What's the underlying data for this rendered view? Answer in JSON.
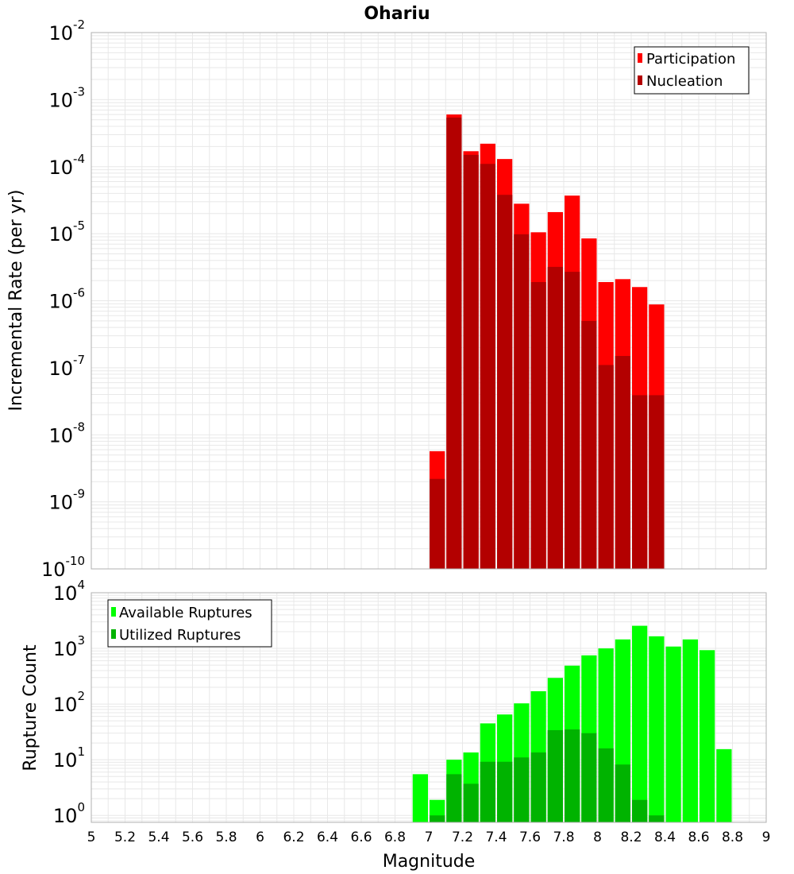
{
  "chart_title": "Ohariu",
  "x_axis_label": "Magnitude",
  "colors": {
    "participation": "#ff0000",
    "nucleation": "#b30000",
    "available": "#00ff00",
    "utilized": "#00b300",
    "grid": "#e8e8e8",
    "frame": "#b0b0b0"
  },
  "chart_data": [
    {
      "type": "bar",
      "ylabel": "Incremental Rate (per yr)",
      "yscale": "log",
      "ylim": [
        1e-10,
        0.01
      ],
      "xlim": [
        5,
        9
      ],
      "x_ticks": [
        "5",
        "5.2",
        "5.4",
        "5.6",
        "5.8",
        "6",
        "6.2",
        "6.4",
        "6.6",
        "6.8",
        "7",
        "7.2",
        "7.4",
        "7.6",
        "7.8",
        "8",
        "8.2",
        "8.4",
        "8.6",
        "8.8",
        "9"
      ],
      "y_tick_base": "10",
      "y_tick_exponents": [
        "-10",
        "-9",
        "-8",
        "-7",
        "-6",
        "-5",
        "-4",
        "-3",
        "-2"
      ],
      "legend_position": "top-right",
      "x": [
        7.05,
        7.15,
        7.25,
        7.35,
        7.45,
        7.55,
        7.65,
        7.75,
        7.85,
        7.95,
        8.05,
        8.15,
        8.25,
        8.35
      ],
      "series": [
        {
          "name": "Participation",
          "values": [
            5.7e-09,
            0.0006,
            0.00017,
            0.00022,
            0.00013,
            2.8e-05,
            1.05e-05,
            2.1e-05,
            3.7e-05,
            8.5e-06,
            1.9e-06,
            2.1e-06,
            1.6e-06,
            8.8e-07
          ]
        },
        {
          "name": "Nucleation",
          "values": [
            2.2e-09,
            0.00054,
            0.00015,
            0.00011,
            3.8e-05,
            9.8e-06,
            1.9e-06,
            3.2e-06,
            2.7e-06,
            5e-07,
            1.1e-07,
            1.5e-07,
            3.9e-08,
            3.9e-08
          ]
        }
      ]
    },
    {
      "type": "bar",
      "ylabel": "Rupture Count",
      "yscale": "log",
      "ylim": [
        0.75,
        10000
      ],
      "xlim": [
        5,
        9
      ],
      "y_tick_base": "10",
      "y_tick_exponents": [
        "0",
        "1",
        "2",
        "3",
        "4"
      ],
      "legend_position": "top-left",
      "x": [
        6.95,
        7.05,
        7.15,
        7.25,
        7.35,
        7.45,
        7.55,
        7.65,
        7.75,
        7.85,
        7.95,
        8.05,
        8.15,
        8.25,
        8.35,
        8.45,
        8.55,
        8.65,
        8.75
      ],
      "series": [
        {
          "name": "Available Ruptures",
          "values": [
            5.5,
            1.9,
            10,
            13.5,
            45,
            65,
            103,
            170,
            295,
            490,
            750,
            1000,
            1450,
            2550,
            1650,
            1080,
            1450,
            930,
            15.5
          ]
        },
        {
          "name": "Utilized Ruptures",
          "values": [
            0,
            1,
            5.5,
            3.7,
            9.2,
            9.2,
            11,
            13.5,
            34,
            35,
            30,
            16,
            8.2,
            1.9,
            1,
            0,
            0,
            0,
            0
          ]
        }
      ]
    }
  ]
}
